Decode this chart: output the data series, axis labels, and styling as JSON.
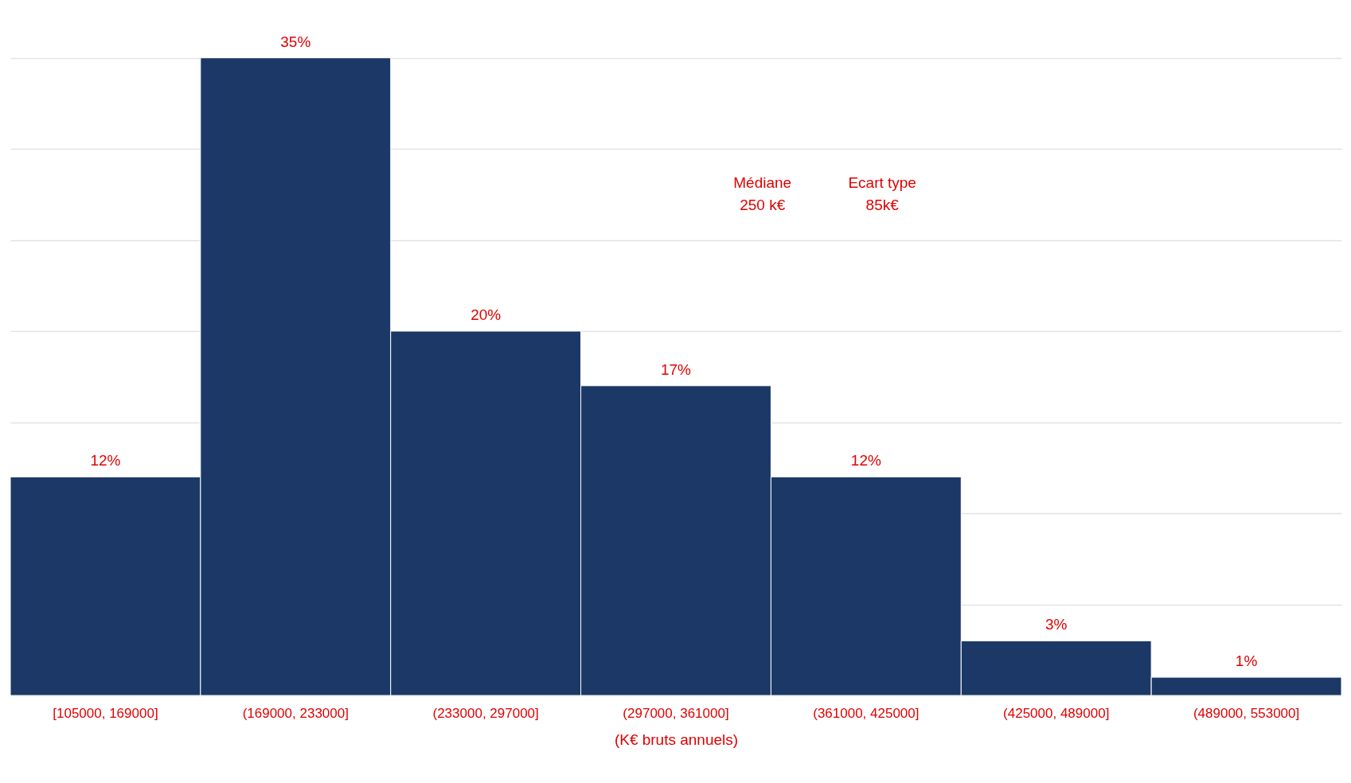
{
  "chart_data": {
    "type": "bar",
    "xlabel": "(K€ bruts annuels)",
    "categories": [
      "[105000, 169000]",
      "(169000, 233000]",
      "(233000, 297000]",
      "(297000, 361000]",
      "(361000, 425000]",
      "(425000, 489000]",
      "(489000, 553000]"
    ],
    "values": [
      12,
      35,
      20,
      17,
      12,
      3,
      1
    ],
    "value_labels": [
      "12%",
      "35%",
      "20%",
      "17%",
      "12%",
      "3%",
      "1%"
    ],
    "color": "#1b3866",
    "ylim": [
      0,
      38
    ],
    "yticks": [
      {
        "value": 0,
        "label": null
      },
      {
        "value": 5,
        "label": null
      },
      {
        "value": 10,
        "label": null
      },
      {
        "value": 15,
        "label": null
      },
      {
        "value": 20,
        "label": null
      },
      {
        "value": 25,
        "label": null
      },
      {
        "value": 30,
        "label": null
      },
      {
        "value": 35,
        "label": null
      }
    ],
    "grid": "y",
    "tick_labels": "x",
    "annotations": [
      "Médiane\n250 k€",
      "Ecart type\n85k€"
    ]
  }
}
